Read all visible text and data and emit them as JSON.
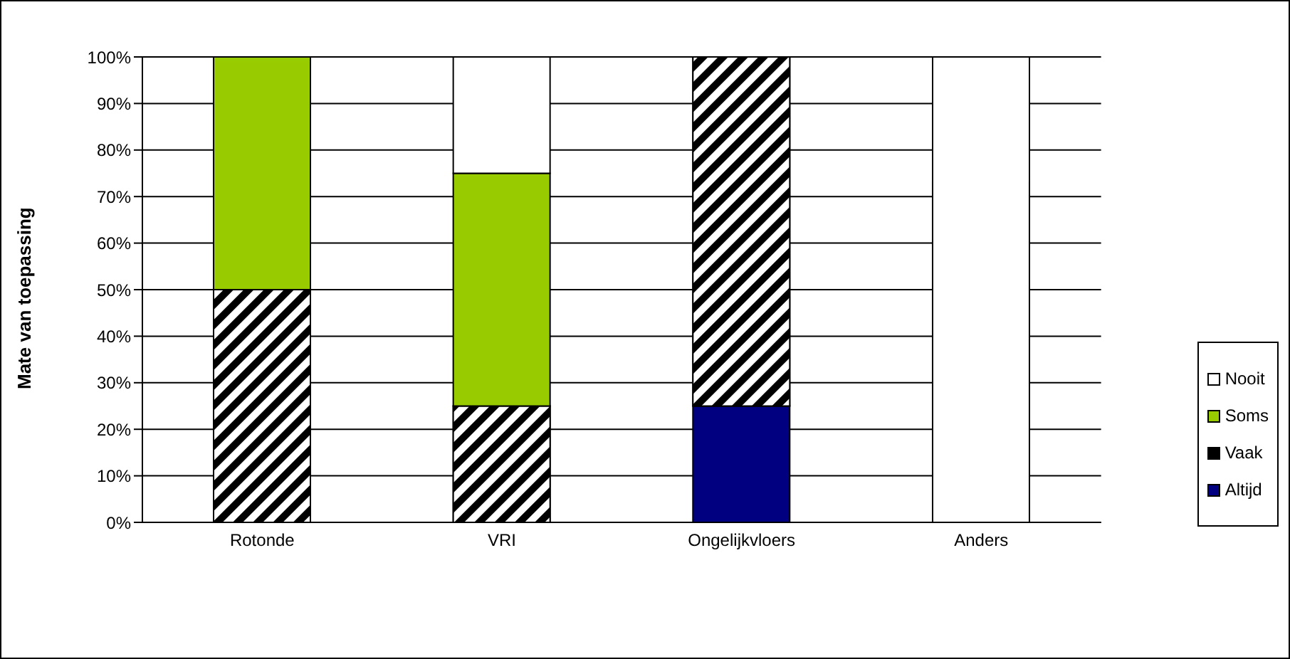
{
  "chart_data": {
    "type": "bar",
    "stacked": true,
    "ylabel": "Mate van toepassing",
    "categories": [
      "Rotonde",
      "VRI",
      "Ongelijkvloers",
      "Anders"
    ],
    "series": [
      {
        "name": "Altijd",
        "color": "#000080",
        "values": [
          0,
          0,
          25,
          0
        ]
      },
      {
        "name": "Vaak",
        "color": "#000000",
        "values": [
          50,
          25,
          75,
          0
        ]
      },
      {
        "name": "Soms",
        "color": "#99cc00",
        "values": [
          50,
          50,
          0,
          0
        ]
      },
      {
        "name": "Nooit",
        "color": "#ffffff",
        "values": [
          0,
          25,
          0,
          100
        ]
      }
    ],
    "ylim": [
      0,
      100
    ],
    "yticks": [
      {
        "value": 0,
        "label": "0%"
      },
      {
        "value": 10,
        "label": "10%"
      },
      {
        "value": 20,
        "label": "20%"
      },
      {
        "value": 30,
        "label": "30%"
      },
      {
        "value": 40,
        "label": "40%"
      },
      {
        "value": 50,
        "label": "50%"
      },
      {
        "value": 60,
        "label": "60%"
      },
      {
        "value": 70,
        "label": "70%"
      },
      {
        "value": 80,
        "label": "80%"
      },
      {
        "value": 90,
        "label": "90%"
      },
      {
        "value": 100,
        "label": "100%"
      }
    ],
    "grid": "y",
    "legend": "right"
  }
}
